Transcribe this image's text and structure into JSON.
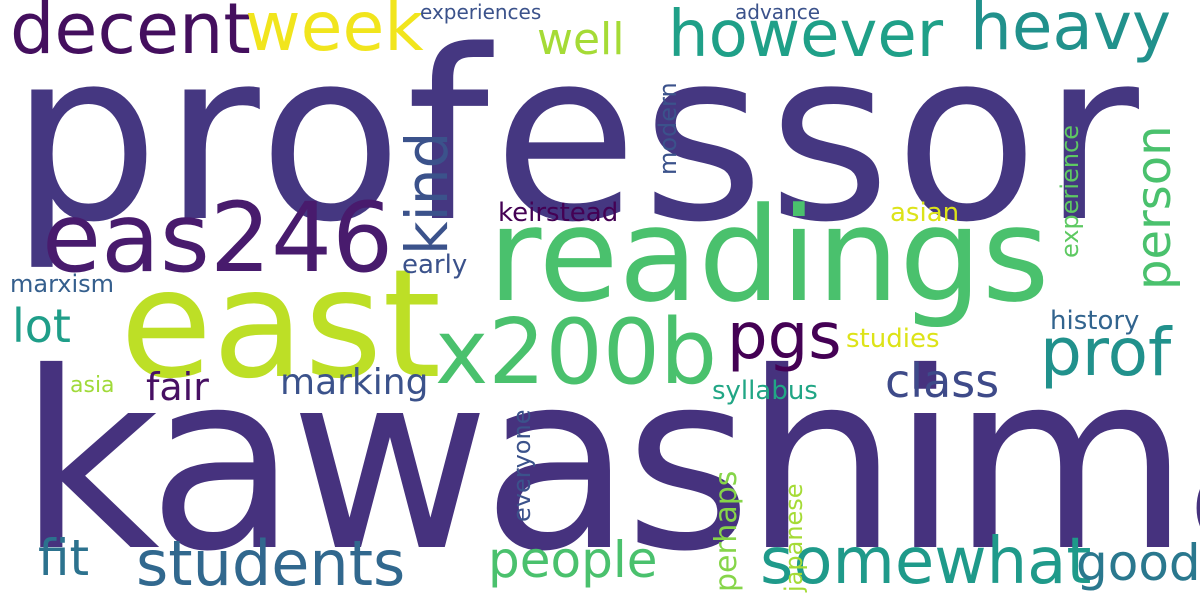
{
  "word_cloud": {
    "words": [
      {
        "text": "professor",
        "color": "#453781"
      },
      {
        "text": "kawashima",
        "color": "#46327e"
      },
      {
        "text": "readings",
        "color": "#4ac16d"
      },
      {
        "text": "east",
        "color": "#bddf26"
      },
      {
        "text": "eas246",
        "color": "#481b6d"
      },
      {
        "text": "x200b",
        "color": "#4ac16d"
      },
      {
        "text": "decent",
        "color": "#440f5e"
      },
      {
        "text": "week",
        "color": "#f1e51d"
      },
      {
        "text": "however",
        "color": "#1fa088"
      },
      {
        "text": "heavy",
        "color": "#21918c"
      },
      {
        "text": "well",
        "color": "#a5db36"
      },
      {
        "text": "pgs",
        "color": "#440154"
      },
      {
        "text": "prof",
        "color": "#21918c"
      },
      {
        "text": "class",
        "color": "#3e4a89"
      },
      {
        "text": "lot",
        "color": "#1f9e89"
      },
      {
        "text": "fair",
        "color": "#471063"
      },
      {
        "text": "marking",
        "color": "#3b528b"
      },
      {
        "text": "fit",
        "color": "#2c728e"
      },
      {
        "text": "students",
        "color": "#31688e"
      },
      {
        "text": "people",
        "color": "#4ac16d"
      },
      {
        "text": "somewhat",
        "color": "#1f9a8a"
      },
      {
        "text": "good",
        "color": "#2a788e"
      },
      {
        "text": "experiences",
        "color": "#3b528b"
      },
      {
        "text": "advance",
        "color": "#3b528b"
      },
      {
        "text": "keirstead",
        "color": "#440154"
      },
      {
        "text": "asian",
        "color": "#dce319"
      },
      {
        "text": "early",
        "color": "#3b528b"
      },
      {
        "text": "marxism",
        "color": "#355f8d"
      },
      {
        "text": "history",
        "color": "#32648e"
      },
      {
        "text": "studies",
        "color": "#dde318"
      },
      {
        "text": "asia",
        "color": "#a0da39"
      },
      {
        "text": "syllabus",
        "color": "#21a685"
      },
      {
        "text": "kind",
        "color": "#3b528b"
      },
      {
        "text": "modern",
        "color": "#3b528b"
      },
      {
        "text": "person",
        "color": "#4ac16d"
      },
      {
        "text": "experience",
        "color": "#5ec962"
      },
      {
        "text": "everyone",
        "color": "#3b528b"
      },
      {
        "text": "perhaps",
        "color": "#86d549"
      },
      {
        "text": "japanese",
        "color": "#a5db36"
      }
    ]
  }
}
